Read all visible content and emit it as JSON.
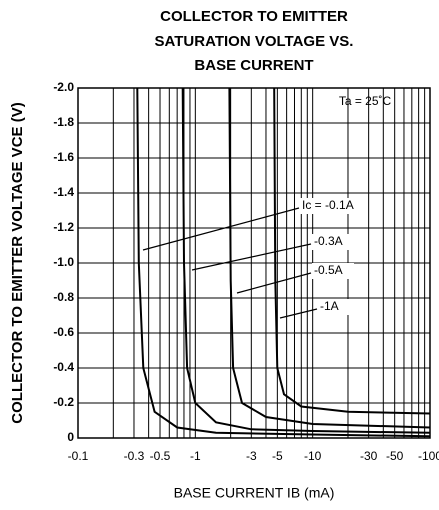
{
  "chart_data": {
    "type": "line",
    "title": [
      "COLLECTOR TO EMITTER",
      "SATURATION VOLTAGE VS.",
      "BASE CURRENT"
    ],
    "xlabel": "BASE CURRENT  IB (mA)",
    "ylabel": "COLLECTOR TO EMITTER VOLTAGE  VCE (V)",
    "xscale": "log",
    "xlim": [
      -0.1,
      -100
    ],
    "xticks": [
      -0.1,
      -0.3,
      -0.5,
      -1,
      -3,
      -5,
      -10,
      -30,
      -50,
      -100
    ],
    "x_minor_ticks": [
      -0.2,
      -0.4,
      -0.6,
      -0.7,
      -0.8,
      -0.9,
      -2,
      -4,
      -6,
      -7,
      -8,
      -9,
      -20,
      -40,
      -60,
      -70,
      -80,
      -90
    ],
    "ylim": [
      0,
      -2.0
    ],
    "yticks": [
      0,
      -0.2,
      -0.4,
      -0.6,
      -0.8,
      {
        "value": -1.0,
        "label": "-1.0"
      },
      -1.2,
      -1.4,
      -1.6,
      -1.8,
      {
        "value": -2.0,
        "label": "-2.0"
      }
    ],
    "grid": true,
    "annotations": [
      "Ta = 25˚C"
    ],
    "series": [
      {
        "name": "Ic = -0.1A",
        "color": "#000000",
        "x": [
          -0.32,
          -0.33,
          -0.36,
          -0.45,
          -0.7,
          -1.5,
          -10,
          -100
        ],
        "values": [
          -2.0,
          -1.0,
          -0.4,
          -0.15,
          -0.06,
          -0.03,
          -0.02,
          -0.01
        ]
      },
      {
        "name": "-0.3A",
        "color": "#000000",
        "x": [
          -0.78,
          -0.8,
          -0.85,
          -1.0,
          -1.5,
          -3,
          -10,
          -100
        ],
        "values": [
          -2.0,
          -1.0,
          -0.4,
          -0.2,
          -0.09,
          -0.05,
          -0.04,
          -0.03
        ]
      },
      {
        "name": "-0.5A",
        "color": "#000000",
        "x": [
          -1.95,
          -2.0,
          -2.1,
          -2.5,
          -4,
          -10,
          -100
        ],
        "values": [
          -2.0,
          -0.9,
          -0.4,
          -0.2,
          -0.12,
          -0.08,
          -0.06
        ]
      },
      {
        "name": "-1A",
        "color": "#000000",
        "x": [
          -4.7,
          -4.8,
          -5.0,
          -5.7,
          -8,
          -20,
          -100
        ],
        "values": [
          -2.0,
          -0.9,
          -0.4,
          -0.25,
          -0.18,
          -0.15,
          -0.14
        ]
      }
    ]
  }
}
